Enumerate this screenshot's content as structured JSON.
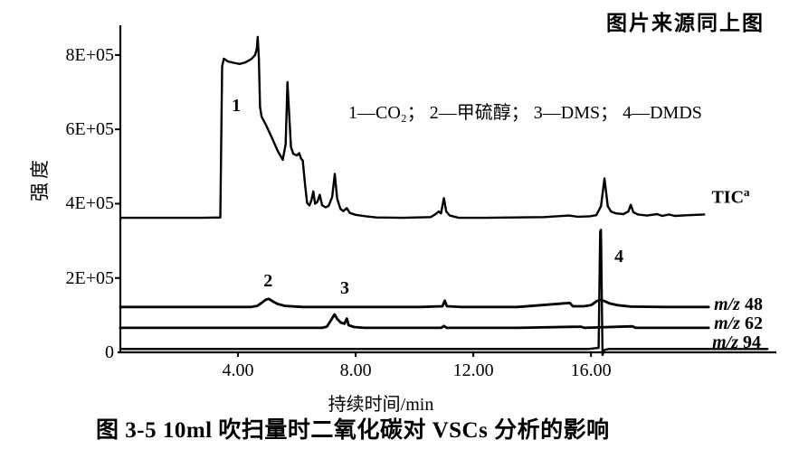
{
  "header": {
    "source_note": "图片来源同上图"
  },
  "caption": "图 3-5  10ml 吹扫量时二氧化碳对 VSCs 分析的影响",
  "chart_data": {
    "type": "line",
    "title": "",
    "xlabel": "持续时间/min",
    "ylabel": "强度",
    "xlim": [
      0,
      22.3
    ],
    "ylim": [
      0,
      880000
    ],
    "grid": false,
    "background": "#ffffff",
    "line_color": "#000000",
    "x_ticks": [
      {
        "t": 4,
        "label": "4.00"
      },
      {
        "t": 8,
        "label": "8.00"
      },
      {
        "t": 12,
        "label": "12.00"
      },
      {
        "t": 16,
        "label": "16.00"
      }
    ],
    "y_ticks": [
      {
        "v": 800000,
        "label": "8E+05"
      },
      {
        "v": 600000,
        "label": "6E+05"
      },
      {
        "v": 400000,
        "label": "4E+05"
      },
      {
        "v": 200000,
        "label": "2E+05"
      },
      {
        "v": 0,
        "label": "0"
      }
    ],
    "legend_items": [
      "1—CO₂",
      "2—甲硫醇",
      "3—DMS",
      "4—DMDS"
    ],
    "legend_separator": "；  ",
    "peak_annotations": [
      {
        "label": "1",
        "t": 3.94,
        "v": 664000
      },
      {
        "label": "2",
        "t": 5.02,
        "v": 192000
      },
      {
        "label": "3",
        "t": 7.63,
        "v": 173000
      },
      {
        "label": "4",
        "t": 16.95,
        "v": 258000
      }
    ],
    "trace_labels": [
      {
        "name": "tic-label",
        "t": 20.1,
        "v": 430000,
        "text": "TIC",
        "sup": "a"
      },
      {
        "name": "mz48-label",
        "t": 20.18,
        "v": 128000,
        "italic": "m/z",
        "text": " 48"
      },
      {
        "name": "mz62-label",
        "t": 20.18,
        "v": 78000,
        "italic": "m/z",
        "text": " 62"
      },
      {
        "name": "mz94-label",
        "t": 20.12,
        "v": 27000,
        "italic": "m/z",
        "text": " 94"
      }
    ],
    "series": [
      {
        "name": "TIC",
        "stroke_width": 2.4,
        "points": [
          [
            0,
            362000
          ],
          [
            1.5,
            362000
          ],
          [
            2.8,
            362000
          ],
          [
            3.4,
            363000
          ],
          [
            3.46,
            770000
          ],
          [
            3.52,
            790000
          ],
          [
            3.65,
            783000
          ],
          [
            3.85,
            779000
          ],
          [
            4.05,
            776000
          ],
          [
            4.25,
            780000
          ],
          [
            4.45,
            789000
          ],
          [
            4.58,
            800000
          ],
          [
            4.64,
            818000
          ],
          [
            4.67,
            849000
          ],
          [
            4.71,
            790000
          ],
          [
            4.75,
            660000
          ],
          [
            4.8,
            634000
          ],
          [
            4.95,
            612000
          ],
          [
            5.15,
            578000
          ],
          [
            5.35,
            542000
          ],
          [
            5.52,
            518000
          ],
          [
            5.62,
            560000
          ],
          [
            5.68,
            727000
          ],
          [
            5.74,
            640000
          ],
          [
            5.8,
            552000
          ],
          [
            5.88,
            534000
          ],
          [
            6.0,
            530000
          ],
          [
            6.08,
            536000
          ],
          [
            6.14,
            522000
          ],
          [
            6.2,
            516000
          ],
          [
            6.28,
            450000
          ],
          [
            6.35,
            402000
          ],
          [
            6.43,
            395000
          ],
          [
            6.5,
            410000
          ],
          [
            6.56,
            433000
          ],
          [
            6.62,
            400000
          ],
          [
            6.7,
            405000
          ],
          [
            6.78,
            424000
          ],
          [
            6.86,
            396000
          ],
          [
            6.98,
            390000
          ],
          [
            7.08,
            394000
          ],
          [
            7.2,
            418000
          ],
          [
            7.29,
            480000
          ],
          [
            7.37,
            414000
          ],
          [
            7.48,
            386000
          ],
          [
            7.58,
            380000
          ],
          [
            7.7,
            388000
          ],
          [
            7.8,
            375000
          ],
          [
            8.0,
            370000
          ],
          [
            8.35,
            366000
          ],
          [
            8.7,
            363000
          ],
          [
            9.6,
            362000
          ],
          [
            10.55,
            364000
          ],
          [
            10.72,
            372000
          ],
          [
            10.82,
            379000
          ],
          [
            10.9,
            374000
          ],
          [
            11.0,
            415000
          ],
          [
            11.08,
            379000
          ],
          [
            11.2,
            368000
          ],
          [
            11.5,
            362000
          ],
          [
            12.4,
            362000
          ],
          [
            13.4,
            363000
          ],
          [
            14.4,
            364000
          ],
          [
            15.25,
            368000
          ],
          [
            15.55,
            365000
          ],
          [
            15.95,
            366000
          ],
          [
            16.18,
            369000
          ],
          [
            16.34,
            393000
          ],
          [
            16.46,
            468000
          ],
          [
            16.57,
            393000
          ],
          [
            16.68,
            379000
          ],
          [
            16.85,
            374000
          ],
          [
            17.1,
            372000
          ],
          [
            17.27,
            379000
          ],
          [
            17.35,
            397000
          ],
          [
            17.44,
            377000
          ],
          [
            17.6,
            371000
          ],
          [
            17.9,
            368000
          ],
          [
            18.25,
            372000
          ],
          [
            18.42,
            367000
          ],
          [
            18.65,
            371000
          ],
          [
            18.85,
            367000
          ],
          [
            19.3,
            369000
          ],
          [
            19.85,
            371000
          ]
        ]
      },
      {
        "name": "m/z 48",
        "stroke_width": 2.8,
        "points": [
          [
            0,
            122000
          ],
          [
            2.5,
            122000
          ],
          [
            4.45,
            122000
          ],
          [
            4.65,
            125000
          ],
          [
            4.8,
            133000
          ],
          [
            4.95,
            142000
          ],
          [
            5.05,
            144000
          ],
          [
            5.18,
            137000
          ],
          [
            5.35,
            130000
          ],
          [
            5.6,
            125000
          ],
          [
            6.2,
            122000
          ],
          [
            8.0,
            122000
          ],
          [
            10.2,
            122000
          ],
          [
            10.95,
            124000
          ],
          [
            11.03,
            139000
          ],
          [
            11.1,
            124000
          ],
          [
            11.6,
            122000
          ],
          [
            13.5,
            122000
          ],
          [
            15.28,
            133000
          ],
          [
            15.38,
            124000
          ],
          [
            15.75,
            124000
          ],
          [
            16.0,
            127000
          ],
          [
            16.2,
            138000
          ],
          [
            16.32,
            141000
          ],
          [
            16.45,
            138000
          ],
          [
            16.62,
            132000
          ],
          [
            16.9,
            127000
          ],
          [
            17.35,
            123000
          ],
          [
            18.5,
            122000
          ],
          [
            20.0,
            122000
          ]
        ]
      },
      {
        "name": "m/z 62",
        "stroke_width": 2.8,
        "points": [
          [
            0,
            66000
          ],
          [
            3.0,
            66000
          ],
          [
            6.85,
            66000
          ],
          [
            7.02,
            69000
          ],
          [
            7.15,
            85000
          ],
          [
            7.28,
            102000
          ],
          [
            7.38,
            89000
          ],
          [
            7.5,
            80000
          ],
          [
            7.62,
            77000
          ],
          [
            7.7,
            91000
          ],
          [
            7.76,
            73000
          ],
          [
            7.95,
            68000
          ],
          [
            8.3,
            66000
          ],
          [
            10.9,
            66000
          ],
          [
            11.0,
            71000
          ],
          [
            11.1,
            66000
          ],
          [
            13.5,
            66000
          ],
          [
            15.65,
            69000
          ],
          [
            15.78,
            66000
          ],
          [
            17.4,
            70000
          ],
          [
            17.52,
            66000
          ],
          [
            20.0,
            66000
          ]
        ]
      },
      {
        "name": "m/z 94",
        "stroke_width": 2.4,
        "points": [
          [
            0,
            9000
          ],
          [
            5.0,
            9000
          ],
          [
            10.0,
            9000
          ],
          [
            15.9,
            9000
          ],
          [
            16.26,
            12000
          ],
          [
            16.31,
            325000
          ],
          [
            16.34,
            330000
          ],
          [
            16.39,
            -7000
          ],
          [
            16.44,
            6000
          ],
          [
            16.6,
            9000
          ],
          [
            18.0,
            9000
          ],
          [
            22.0,
            9000
          ]
        ]
      }
    ]
  }
}
